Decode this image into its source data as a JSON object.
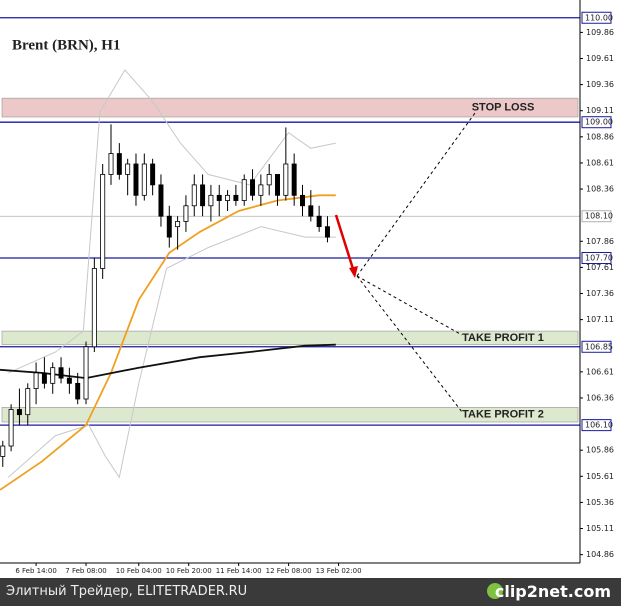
{
  "chart_data": {
    "type": "candlestick",
    "title": "Brent (BRN), H1",
    "xlim": [
      0,
      209
    ],
    "ylim": [
      104.78,
      110.17
    ],
    "xticks": [
      {
        "value": 13,
        "label": "6 Feb 14:00"
      },
      {
        "value": 31,
        "label": "7 Feb 08:00"
      },
      {
        "value": 50,
        "label": "10 Feb 04:00"
      },
      {
        "value": 68,
        "label": "10 Feb 20:00"
      },
      {
        "value": 86,
        "label": "11 Feb 14:00"
      },
      {
        "value": 104,
        "label": "12 Feb 08:00"
      },
      {
        "value": 122,
        "label": "13 Feb 02:00"
      }
    ],
    "yticks": [
      109.86,
      109.61,
      109.36,
      109.11,
      108.86,
      108.61,
      108.36,
      107.86,
      107.61,
      107.36,
      107.11,
      106.61,
      106.36,
      105.86,
      105.61,
      105.36,
      105.11,
      104.86
    ],
    "levels": [
      {
        "value": 110,
        "label": "110.00",
        "color": "#1a1aa0"
      },
      {
        "value": 109,
        "label": "109.00",
        "color": "#1a1aa0"
      },
      {
        "value": 108.1,
        "label": "108.10",
        "color": "#b0b0b0"
      },
      {
        "value": 107.7,
        "label": "107.70",
        "color": "#1a1aa0"
      },
      {
        "value": 106.85,
        "label": "106.85",
        "color": "#1a1aa0"
      },
      {
        "value": 106.1,
        "label": "106.10",
        "color": "#1a1aa0"
      }
    ],
    "zones": [
      {
        "name": "STOP LOSS",
        "low": 109.05,
        "high": 109.23,
        "color": "#ecc8c8"
      },
      {
        "name": "TAKE PROFIT 1",
        "low": 106.87,
        "high": 107.0,
        "color": "#dde9cf"
      },
      {
        "name": "TAKE PROFIT 2",
        "low": 106.13,
        "high": 106.27,
        "color": "#dde9cf"
      }
    ],
    "candles": {
      "x": [
        1,
        4,
        7,
        10,
        13,
        16,
        19,
        22,
        25,
        28,
        31,
        34,
        37,
        40,
        43,
        46,
        49,
        52,
        55,
        58,
        61,
        64,
        67,
        70,
        73,
        76,
        79,
        82,
        85,
        88,
        91,
        94,
        97,
        100,
        103,
        106,
        109,
        112,
        115,
        118
      ],
      "open": [
        105.8,
        105.9,
        106.25,
        106.2,
        106.45,
        106.6,
        106.5,
        106.65,
        106.55,
        106.5,
        106.35,
        106.85,
        107.6,
        108.5,
        108.7,
        108.5,
        108.6,
        108.3,
        108.6,
        108.4,
        108.1,
        108.0,
        108.05,
        108.2,
        108.4,
        108.2,
        108.3,
        108.25,
        108.3,
        108.25,
        108.45,
        108.3,
        108.4,
        108.5,
        108.3,
        108.6,
        108.3,
        108.2,
        108.1,
        108.0
      ],
      "high": [
        105.95,
        106.3,
        106.45,
        106.5,
        106.7,
        106.75,
        106.7,
        106.75,
        106.65,
        106.6,
        106.9,
        107.7,
        108.6,
        108.98,
        108.8,
        108.65,
        108.7,
        108.7,
        108.65,
        108.5,
        108.2,
        108.1,
        108.3,
        108.5,
        108.5,
        108.4,
        108.4,
        108.35,
        108.4,
        108.5,
        108.55,
        108.5,
        108.6,
        108.5,
        108.95,
        108.7,
        108.4,
        108.35,
        108.2,
        108.1
      ],
      "low": [
        105.7,
        105.85,
        106.1,
        106.1,
        106.3,
        106.45,
        106.4,
        106.5,
        106.4,
        106.3,
        106.3,
        106.8,
        107.5,
        108.4,
        108.45,
        108.3,
        108.2,
        108.25,
        108.3,
        108.0,
        107.8,
        107.78,
        107.95,
        108.1,
        108.1,
        108.05,
        108.1,
        108.15,
        108.2,
        108.2,
        108.25,
        108.2,
        108.3,
        108.2,
        108.25,
        108.2,
        108.1,
        108.05,
        107.95,
        107.85
      ],
      "close": [
        105.9,
        106.25,
        106.2,
        106.45,
        106.6,
        106.5,
        106.65,
        106.55,
        106.5,
        106.35,
        106.85,
        107.6,
        108.5,
        108.7,
        108.5,
        108.6,
        108.3,
        108.6,
        108.4,
        108.1,
        107.9,
        108.05,
        108.2,
        108.4,
        108.2,
        108.3,
        108.25,
        108.3,
        108.25,
        108.45,
        108.3,
        108.4,
        108.5,
        108.3,
        108.6,
        108.3,
        108.2,
        108.1,
        108.0,
        107.9
      ]
    },
    "series": [
      {
        "color": "#c8c8c8",
        "x": [
          3,
          20,
          30,
          36,
          45,
          55,
          65,
          75,
          90,
          104,
          112,
          121
        ],
        "values": [
          106.6,
          106.8,
          107.0,
          109.1,
          109.5,
          109.2,
          108.8,
          108.5,
          108.4,
          108.9,
          108.75,
          108.8
        ]
      },
      {
        "color": "#c8c8c8",
        "x": [
          3,
          20,
          32,
          38,
          43,
          50,
          60,
          75,
          94,
          110,
          121
        ],
        "values": [
          105.6,
          106.0,
          106.1,
          105.8,
          105.6,
          106.5,
          107.6,
          107.8,
          108.0,
          107.9,
          107.9
        ]
      },
      {
        "color": "#f0a020",
        "x": [
          0,
          15,
          31,
          40,
          50,
          61,
          72,
          86,
          100,
          115,
          121
        ],
        "values": [
          105.48,
          105.75,
          106.1,
          106.6,
          107.3,
          107.75,
          107.95,
          108.15,
          108.25,
          108.3,
          108.3
        ]
      },
      {
        "color": "#111111",
        "x": [
          0,
          15,
          31,
          50,
          72,
          90,
          110,
          121
        ],
        "values": [
          106.63,
          106.6,
          106.55,
          106.65,
          106.75,
          106.8,
          106.86,
          106.87
        ]
      }
    ]
  },
  "footer": {
    "site": "Элитный Трейдер, ELITETRADER.RU",
    "brand": "clip2net.com"
  }
}
